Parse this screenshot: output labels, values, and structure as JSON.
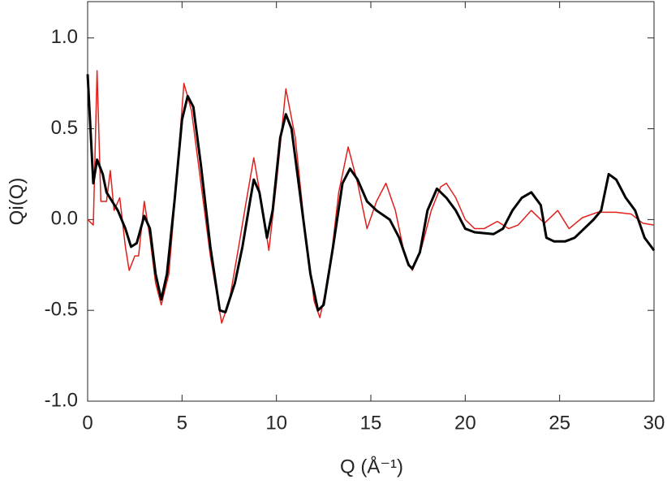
{
  "chart_data": {
    "type": "line",
    "xlabel": "Q (Å⁻¹)",
    "ylabel": "Qi(Q)",
    "xlim": [
      0,
      30
    ],
    "xticks": [
      0,
      5,
      10,
      15,
      20,
      25,
      30
    ],
    "ylim": [
      -1,
      1.2
    ],
    "yticks": [
      {
        "value": -1,
        "label": "-1.0"
      },
      {
        "value": -0.5,
        "label": "-0.5"
      },
      {
        "value": 0,
        "label": "0.0"
      },
      {
        "value": 0.5,
        "label": "0.5"
      },
      {
        "value": 1,
        "label": "1.0"
      }
    ],
    "grid": false,
    "series": [
      {
        "color": "#e0201c",
        "width": 1.5,
        "x": [
          0,
          0.3,
          0.5,
          0.7,
          1.0,
          1.2,
          1.4,
          1.7,
          2.0,
          2.2,
          2.5,
          2.7,
          3.0,
          3.3,
          3.6,
          3.9,
          4.3,
          4.7,
          5.1,
          5.5,
          6.0,
          6.5,
          7.1,
          7.5,
          8.0,
          8.4,
          8.8,
          9.2,
          9.6,
          10.0,
          10.5,
          11.0,
          11.5,
          12.0,
          12.3,
          12.8,
          13.3,
          13.8,
          14.3,
          14.8,
          15.3,
          15.8,
          16.3,
          16.8,
          17.2,
          17.7,
          18.2,
          18.7,
          19.0,
          19.5,
          20.0,
          20.5,
          21.0,
          21.7,
          22.3,
          22.8,
          23.5,
          24.2,
          24.9,
          25.5,
          26.2,
          27.0,
          28.0,
          28.8,
          29.4,
          30
        ],
        "values": [
          0.0,
          -0.03,
          0.82,
          0.1,
          0.1,
          0.27,
          0.05,
          0.12,
          -0.15,
          -0.28,
          -0.2,
          -0.2,
          0.1,
          -0.1,
          -0.35,
          -0.47,
          -0.3,
          0.2,
          0.75,
          0.6,
          0.2,
          -0.2,
          -0.57,
          -0.45,
          -0.15,
          0.1,
          0.34,
          0.1,
          -0.17,
          0.2,
          0.72,
          0.45,
          -0.05,
          -0.45,
          -0.54,
          -0.3,
          0.15,
          0.4,
          0.2,
          -0.05,
          0.1,
          0.2,
          0.05,
          -0.2,
          -0.28,
          -0.15,
          0.05,
          0.18,
          0.2,
          0.12,
          0.0,
          -0.05,
          -0.05,
          -0.01,
          -0.05,
          -0.03,
          0.05,
          -0.02,
          0.05,
          -0.05,
          0.01,
          0.04,
          0.04,
          0.03,
          -0.02,
          -0.03
        ]
      },
      {
        "color": "#000000",
        "width": 3,
        "x": [
          0,
          0.1,
          0.3,
          0.5,
          0.8,
          1.0,
          1.3,
          1.6,
          2.0,
          2.3,
          2.6,
          3.0,
          3.3,
          3.6,
          3.9,
          4.2,
          4.6,
          5.0,
          5.3,
          5.6,
          6.0,
          6.5,
          7.0,
          7.3,
          7.8,
          8.2,
          8.6,
          8.8,
          9.1,
          9.5,
          9.8,
          10.2,
          10.5,
          10.8,
          11.3,
          11.8,
          12.2,
          12.5,
          13.0,
          13.5,
          13.9,
          14.3,
          14.8,
          15.3,
          16.0,
          16.5,
          17.0,
          17.2,
          17.6,
          18.0,
          18.5,
          19.0,
          19.5,
          20.0,
          20.5,
          21.5,
          22.0,
          22.5,
          23.0,
          23.5,
          24.0,
          24.3,
          24.7,
          25.3,
          25.8,
          26.3,
          26.8,
          27.2,
          27.6,
          28.0,
          28.5,
          29.0,
          29.5,
          30.0
        ],
        "values": [
          0.8,
          0.6,
          0.2,
          0.33,
          0.25,
          0.15,
          0.1,
          0.05,
          -0.05,
          -0.15,
          -0.13,
          0.02,
          -0.05,
          -0.3,
          -0.44,
          -0.3,
          0.1,
          0.55,
          0.68,
          0.62,
          0.3,
          -0.15,
          -0.5,
          -0.51,
          -0.35,
          -0.15,
          0.1,
          0.22,
          0.15,
          -0.1,
          0.05,
          0.45,
          0.58,
          0.5,
          0.1,
          -0.3,
          -0.5,
          -0.47,
          -0.15,
          0.2,
          0.28,
          0.22,
          0.1,
          0.05,
          0.0,
          -0.1,
          -0.25,
          -0.27,
          -0.18,
          0.05,
          0.17,
          0.12,
          0.05,
          -0.05,
          -0.07,
          -0.08,
          -0.05,
          0.05,
          0.12,
          0.15,
          0.08,
          -0.1,
          -0.12,
          -0.12,
          -0.1,
          -0.05,
          0.0,
          0.05,
          0.25,
          0.22,
          0.12,
          0.05,
          -0.1,
          -0.17
        ]
      }
    ]
  }
}
